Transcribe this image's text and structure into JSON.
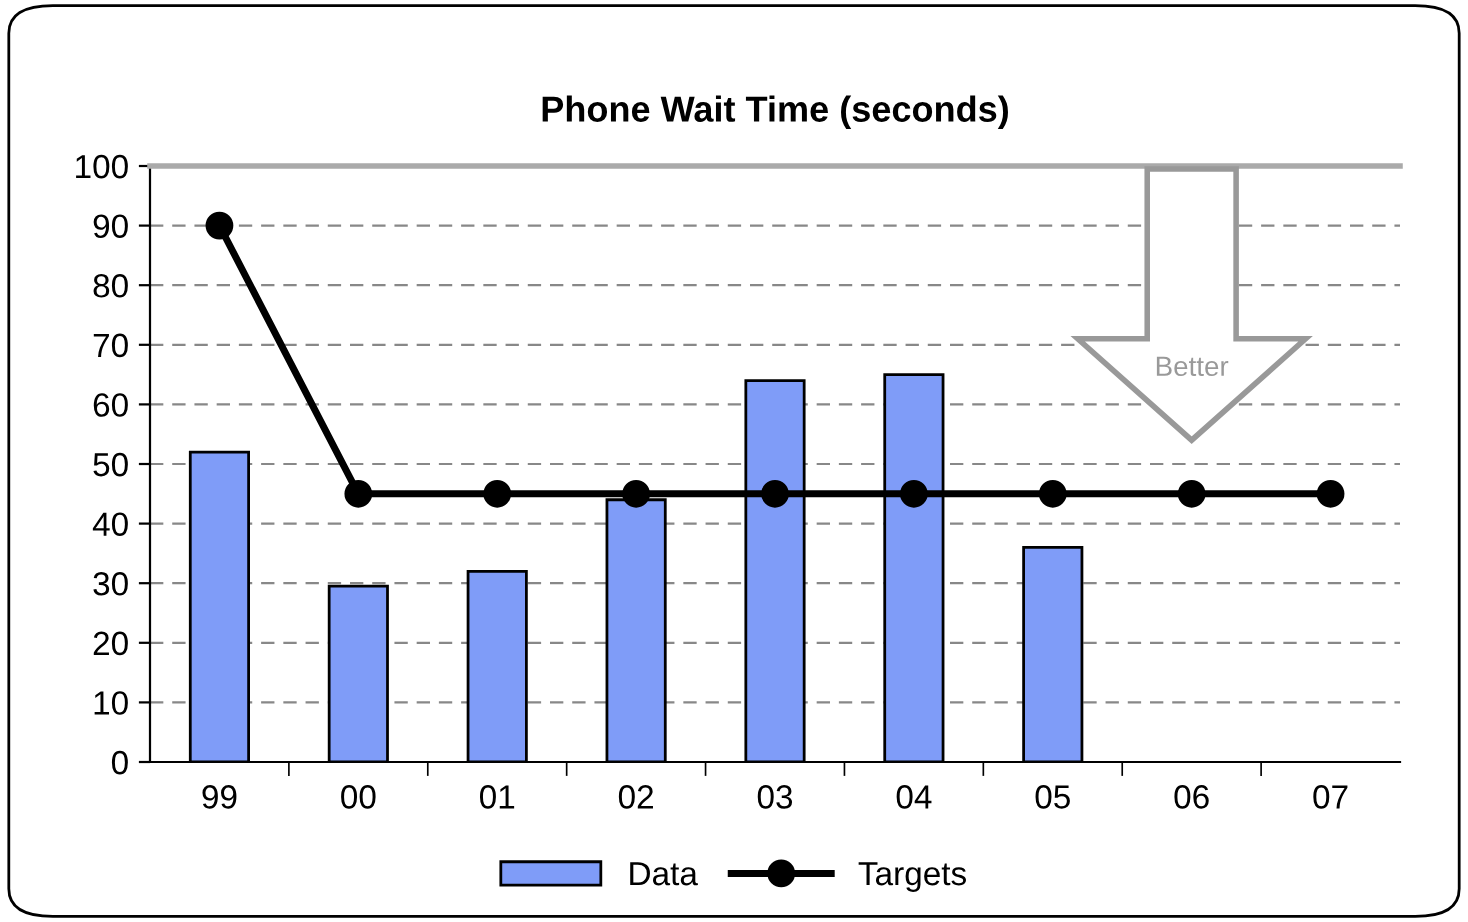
{
  "chart_data": {
    "type": "bar",
    "title": "Phone Wait Time (seconds)",
    "categories": [
      "99",
      "00",
      "01",
      "02",
      "03",
      "04",
      "05",
      "06",
      "07"
    ],
    "series": [
      {
        "name": "Data",
        "color": "#7f9cf8",
        "values": [
          52,
          29.5,
          32,
          44,
          64,
          65,
          36,
          null,
          null
        ]
      },
      {
        "name": "Targets",
        "type": "line",
        "color": "#000000",
        "marker": "circle",
        "values": [
          90,
          45,
          45,
          45,
          45,
          45,
          45,
          45,
          45
        ]
      }
    ],
    "ylim": [
      0,
      100
    ],
    "yticks": [
      0,
      10,
      20,
      30,
      40,
      50,
      60,
      70,
      80,
      90,
      100
    ],
    "grid": "y",
    "legend": "bottom",
    "annotations": [
      "Better"
    ]
  }
}
